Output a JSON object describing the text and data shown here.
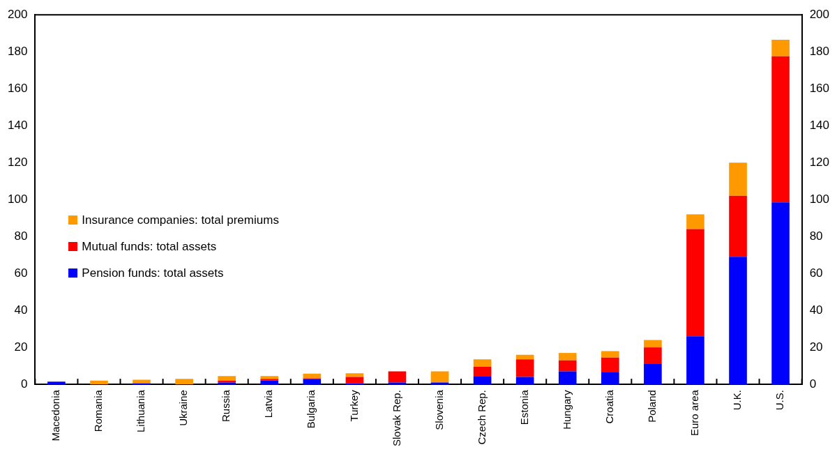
{
  "chart_data": {
    "type": "bar",
    "stacked": true,
    "categories": [
      "Macedonia",
      "Romania",
      "Lithuania",
      "Ukraine",
      "Russia",
      "Latvia",
      "Bulgaria",
      "Turkey",
      "Slovak Rep.",
      "Slovenia",
      "Czech Rep.",
      "Estonia",
      "Hungary",
      "Croatia",
      "Poland",
      "Euro area",
      "U.K.",
      "U.S."
    ],
    "series": [
      {
        "name": "Pension funds: total assets",
        "color": "#0000ff",
        "values": [
          1.5,
          0,
          0.5,
          0,
          1,
          2,
          3,
          0.5,
          1,
          1,
          4.5,
          4,
          7,
          6.5,
          11,
          26,
          69,
          98.5
        ]
      },
      {
        "name": "Mutual funds: total assets",
        "color": "#ff0000",
        "values": [
          0,
          0,
          0,
          0,
          1,
          1,
          0.3,
          3.5,
          6,
          0,
          5,
          9.5,
          6,
          8,
          9,
          58,
          33,
          79
        ]
      },
      {
        "name": "Insurance companies: total premiums",
        "color": "#ff9900",
        "values": [
          0,
          2,
          2,
          3,
          2.5,
          1.5,
          2.5,
          2,
          0,
          6,
          4,
          2.5,
          4,
          3.5,
          4,
          8,
          18,
          9
        ]
      }
    ],
    "ylim": [
      0,
      200
    ],
    "yticks": [
      0,
      20,
      40,
      60,
      80,
      100,
      120,
      140,
      160,
      180,
      200
    ],
    "y2lim": [
      0,
      200
    ],
    "y2ticks": [
      0,
      20,
      40,
      60,
      80,
      100,
      120,
      140,
      160,
      180,
      200
    ],
    "grid": false,
    "legend": "left"
  }
}
